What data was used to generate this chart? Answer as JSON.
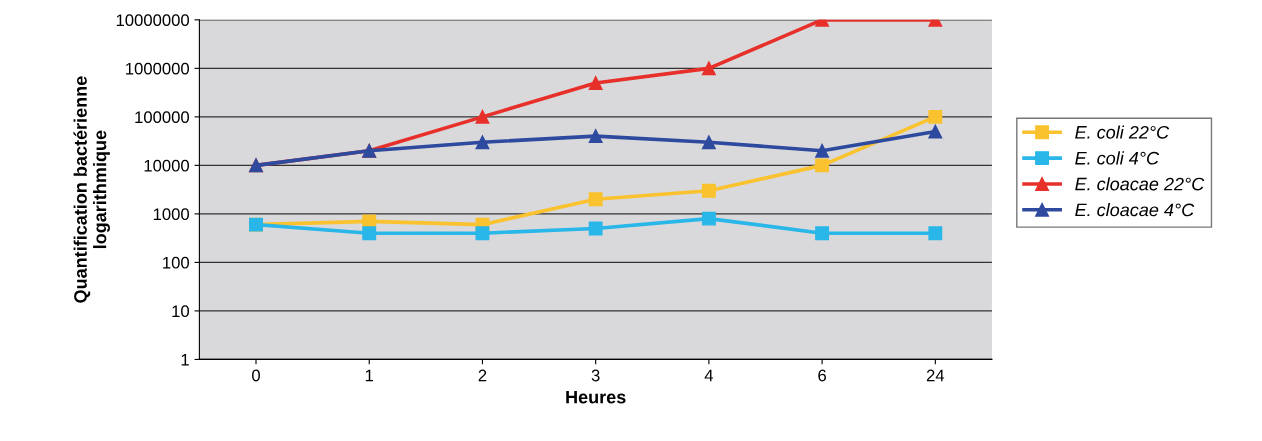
{
  "chart_data": {
    "type": "line",
    "xlabel": "Heures",
    "ylabel": "Quantification bactérienne\nlogarithmique",
    "categories": [
      "0",
      "1",
      "2",
      "3",
      "4",
      "6",
      "24"
    ],
    "series": [
      {
        "name": "E. coli 22°C",
        "color": "#f9c22e",
        "marker": "square",
        "values": [
          600,
          700,
          600,
          2000,
          3000,
          10000,
          100000
        ]
      },
      {
        "name": "E. coli 4°C",
        "color": "#29b6e8",
        "marker": "square",
        "values": [
          600,
          400,
          400,
          500,
          800,
          400,
          400
        ]
      },
      {
        "name": "E. cloacae 22°C",
        "color": "#e8302a",
        "marker": "triangle",
        "values": [
          10000,
          20000,
          100000,
          500000,
          1000000,
          10000000,
          10000000
        ]
      },
      {
        "name": "E. cloacae 4°C",
        "color": "#2e4a9e",
        "marker": "triangle",
        "values": [
          10000,
          20000,
          30000,
          40000,
          30000,
          20000,
          50000
        ]
      }
    ],
    "log": "y",
    "ylim": [
      1,
      10000000
    ],
    "yticks": [
      1,
      10,
      100,
      1000,
      10000,
      100000,
      1000000,
      10000000
    ],
    "grid": "y",
    "legend": "right",
    "line_style": "solid"
  }
}
